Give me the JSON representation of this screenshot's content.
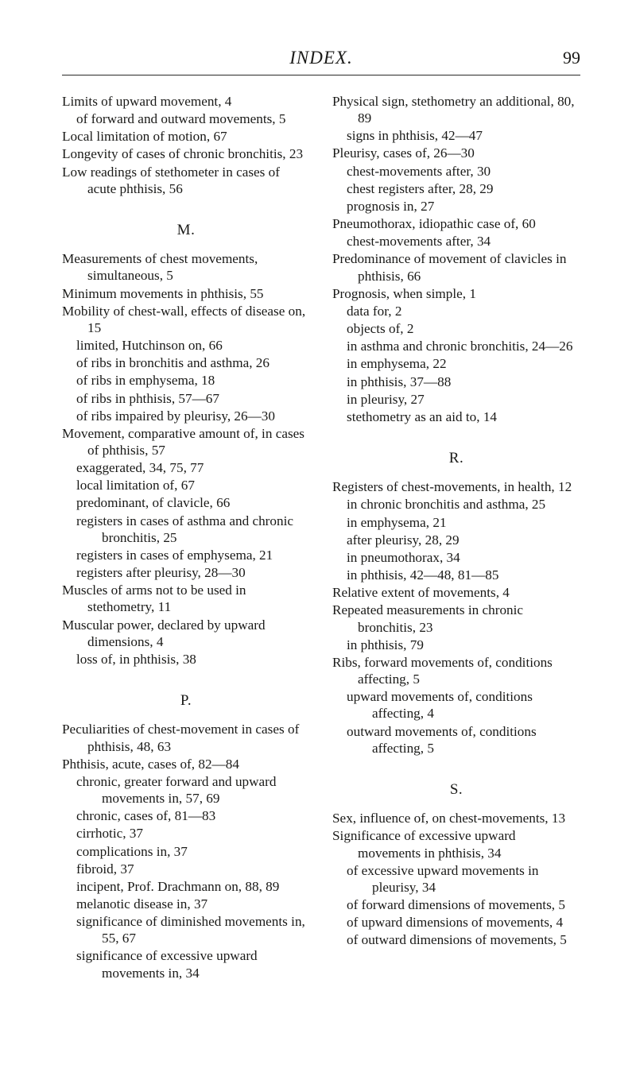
{
  "header": {
    "title": "INDEX.",
    "page_number": "99"
  },
  "left_column": {
    "block1": [
      {
        "t": "entry",
        "text": "Limits of upward movement, 4"
      },
      {
        "t": "sub",
        "text": "of forward and outward movements, 5"
      },
      {
        "t": "entry",
        "text": "Local limitation of motion, 67"
      },
      {
        "t": "entry",
        "text": "Longevity of cases of chronic bronchitis, 23"
      },
      {
        "t": "entry",
        "text": "Low readings of stethometer in cases of acute phthisis, 56"
      }
    ],
    "letter_M": "M.",
    "block_M": [
      {
        "t": "entry",
        "text": "Measurements of chest movements, simultaneous, 5"
      },
      {
        "t": "entry",
        "text": "Minimum movements in phthisis, 55"
      },
      {
        "t": "entry",
        "text": "Mobility of chest-wall, effects of disease on, 15"
      },
      {
        "t": "sub",
        "text": "limited, Hutchinson on, 66"
      },
      {
        "t": "sub",
        "text": "of ribs in bronchitis and asthma, 26"
      },
      {
        "t": "sub",
        "text": "of ribs in emphysema, 18"
      },
      {
        "t": "sub",
        "text": "of ribs in phthisis, 57—67"
      },
      {
        "t": "sub",
        "text": "of ribs impaired by pleurisy, 26—30"
      },
      {
        "t": "entry",
        "text": "Movement, comparative amount of, in cases of phthisis, 57"
      },
      {
        "t": "sub",
        "text": "exaggerated, 34, 75, 77"
      },
      {
        "t": "sub",
        "text": "local limitation of, 67"
      },
      {
        "t": "sub",
        "text": "predominant, of clavicle, 66"
      },
      {
        "t": "sub",
        "text": "registers in cases of asthma and chronic bronchitis, 25"
      },
      {
        "t": "sub",
        "text": "registers in cases of emphysema, 21"
      },
      {
        "t": "sub",
        "text": "registers after pleurisy, 28—30"
      },
      {
        "t": "entry",
        "text": "Muscles of arms not to be used in stethometry, 11"
      },
      {
        "t": "entry",
        "text": "Muscular power, declared by upward dimensions, 4"
      },
      {
        "t": "sub",
        "text": "loss of, in phthisis, 38"
      }
    ],
    "letter_P": "P.",
    "block_P": [
      {
        "t": "entry",
        "text": "Peculiarities of chest-movement in cases of phthisis, 48, 63"
      },
      {
        "t": "entry",
        "text": "Phthisis, acute, cases of, 82—84"
      },
      {
        "t": "sub",
        "text": "chronic, greater forward and upward movements in, 57, 69"
      },
      {
        "t": "sub",
        "text": "chronic, cases of, 81—83"
      },
      {
        "t": "sub",
        "text": "cirrhotic, 37"
      },
      {
        "t": "sub",
        "text": "complications in, 37"
      },
      {
        "t": "sub",
        "text": "fibroid, 37"
      },
      {
        "t": "sub",
        "text": "incipent, Prof. Drachmann on, 88, 89"
      },
      {
        "t": "sub",
        "text": "melanotic disease in, 37"
      },
      {
        "t": "sub",
        "text": "significance of diminished movements in, 55, 67"
      },
      {
        "t": "sub",
        "text": "significance of excessive upward movements in, 34"
      }
    ]
  },
  "right_column": {
    "block_top": [
      {
        "t": "entry",
        "text": "Physical sign, stethometry an additional, 80, 89"
      },
      {
        "t": "sub",
        "text": "signs in phthisis, 42—47"
      },
      {
        "t": "entry",
        "text": "Pleurisy, cases of, 26—30"
      },
      {
        "t": "sub",
        "text": "chest-movements after, 30"
      },
      {
        "t": "sub",
        "text": "chest registers after, 28, 29"
      },
      {
        "t": "sub",
        "text": "prognosis in, 27"
      },
      {
        "t": "entry",
        "text": "Pneumothorax, idiopathic case of, 60"
      },
      {
        "t": "sub",
        "text": "chest-movements after, 34"
      },
      {
        "t": "entry",
        "text": "Predominance of movement of clavicles in phthisis, 66"
      },
      {
        "t": "entry",
        "text": "Prognosis, when simple, 1"
      },
      {
        "t": "sub",
        "text": "data for, 2"
      },
      {
        "t": "sub",
        "text": "objects of, 2"
      },
      {
        "t": "sub",
        "text": "in asthma and chronic bronchitis, 24—26"
      },
      {
        "t": "sub",
        "text": "in emphysema, 22"
      },
      {
        "t": "sub",
        "text": "in phthisis, 37—88"
      },
      {
        "t": "sub",
        "text": "in pleurisy, 27"
      },
      {
        "t": "sub",
        "text": "stethometry as an aid to, 14"
      }
    ],
    "letter_R": "R.",
    "block_R": [
      {
        "t": "entry",
        "text": "Registers of chest-movements, in health, 12"
      },
      {
        "t": "sub",
        "text": "in chronic bronchitis and asthma, 25"
      },
      {
        "t": "sub",
        "text": "in emphysema, 21"
      },
      {
        "t": "sub",
        "text": "after pleurisy, 28, 29"
      },
      {
        "t": "sub",
        "text": "in pneumothorax, 34"
      },
      {
        "t": "sub",
        "text": "in phthisis, 42—48, 81—85"
      },
      {
        "t": "entry",
        "text": "Relative extent of movements, 4"
      },
      {
        "t": "entry",
        "text": "Repeated measurements in chronic bronchitis, 23"
      },
      {
        "t": "sub",
        "text": "in phthisis, 79"
      },
      {
        "t": "entry",
        "text": "Ribs, forward movements of, conditions affecting, 5"
      },
      {
        "t": "sub",
        "text": "upward movements of, conditions affecting, 4"
      },
      {
        "t": "sub",
        "text": "outward movements of, conditions affecting, 5"
      }
    ],
    "letter_S": "S.",
    "block_S": [
      {
        "t": "entry",
        "text": "Sex, influence of, on chest-movements, 13"
      },
      {
        "t": "entry",
        "text": "Significance of excessive upward movements in phthisis, 34"
      },
      {
        "t": "sub",
        "text": "of excessive upward movements in pleurisy, 34"
      },
      {
        "t": "sub",
        "text": "of forward dimensions of movements, 5"
      },
      {
        "t": "sub",
        "text": "of upward dimensions of movements, 4"
      },
      {
        "t": "sub",
        "text": "of outward dimensions of movements, 5"
      }
    ]
  }
}
